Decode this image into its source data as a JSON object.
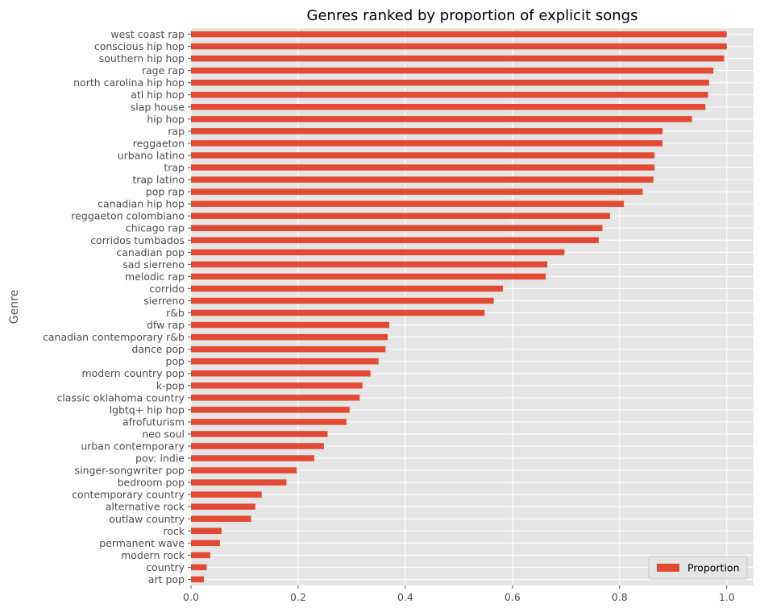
{
  "chart_data": {
    "type": "bar",
    "orientation": "horizontal",
    "title": "Genres ranked by proportion of explicit songs",
    "xlabel": "",
    "ylabel": "Genre",
    "xlim": [
      0,
      1.05
    ],
    "xticks": [
      "0.0",
      "0.2",
      "0.4",
      "0.6",
      "0.8",
      "1.0"
    ],
    "grid": true,
    "legend_position": "lower-right",
    "bar_color": "#E24A33",
    "background_color": "#E5E5E5",
    "categories": [
      "west coast rap",
      "conscious hip hop",
      "southern hip hop",
      "rage rap",
      "north carolina hip hop",
      "atl hip hop",
      "slap house",
      "hip hop",
      "rap",
      "reggaeton",
      "urbano latino",
      "trap",
      "trap latino",
      "pop rap",
      "canadian hip hop",
      "reggaeton colombiano",
      "chicago rap",
      "corridos tumbados",
      "canadian pop",
      "sad sierreno",
      "melodic rap",
      "corrido",
      "sierreno",
      "r&b",
      "dfw rap",
      "canadian contemporary r&b",
      "dance pop",
      "pop",
      "modern country pop",
      "k-pop",
      "classic oklahoma country",
      "lgbtq+ hip hop",
      "afrofuturism",
      "neo soul",
      "urban contemporary",
      "pov: indie",
      "singer-songwriter pop",
      "bedroom pop",
      "contemporary country",
      "alternative rock",
      "outlaw country",
      "rock",
      "permanent wave",
      "modern rock",
      "country",
      "art pop"
    ],
    "series": [
      {
        "name": "Proportion",
        "values": [
          1.0,
          1.0,
          0.995,
          0.975,
          0.967,
          0.965,
          0.96,
          0.935,
          0.88,
          0.88,
          0.865,
          0.865,
          0.863,
          0.843,
          0.808,
          0.782,
          0.768,
          0.761,
          0.697,
          0.665,
          0.662,
          0.582,
          0.565,
          0.548,
          0.37,
          0.367,
          0.363,
          0.35,
          0.335,
          0.32,
          0.315,
          0.296,
          0.29,
          0.255,
          0.248,
          0.23,
          0.197,
          0.178,
          0.132,
          0.12,
          0.112,
          0.057,
          0.054,
          0.036,
          0.029,
          0.024
        ]
      }
    ]
  }
}
